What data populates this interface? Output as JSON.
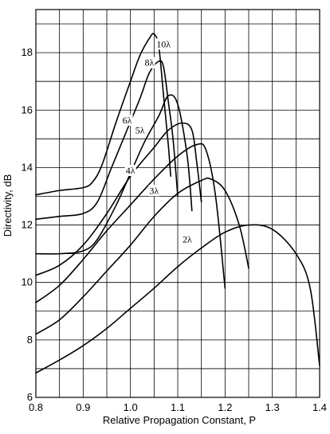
{
  "chart_data": {
    "type": "line",
    "title": "",
    "xlabel": "Relative Propagation Constant, P",
    "ylabel": "Directivity, dB",
    "xlim": [
      0.8,
      1.4
    ],
    "ylim": [
      6,
      19.5
    ],
    "xticks": [
      0.8,
      0.9,
      1.0,
      1.1,
      1.2,
      1.3,
      1.4
    ],
    "xtick_labels": [
      "0.8",
      "0.9",
      "1.0",
      "1.1",
      "1.2",
      "1.3",
      "1.4"
    ],
    "yticks": [
      6,
      8,
      10,
      12,
      14,
      16,
      18
    ],
    "ytick_labels": [
      "6",
      "8",
      "10",
      "12",
      "14",
      "16",
      "18"
    ],
    "grid": true,
    "grid_x_step": 0.05,
    "grid_y_step": 1,
    "line_color": "#000000",
    "series": [
      {
        "name": "2λ",
        "label_x": 1.12,
        "label_y": 11.5,
        "x": [
          0.8,
          0.85,
          0.9,
          0.95,
          1.0,
          1.05,
          1.1,
          1.15,
          1.2,
          1.25,
          1.3,
          1.35,
          1.38,
          1.4
        ],
        "y": [
          6.85,
          7.3,
          7.8,
          8.4,
          9.1,
          9.8,
          10.55,
          11.2,
          11.75,
          12.0,
          11.85,
          11.0,
          9.8,
          7.1
        ]
      },
      {
        "name": "3λ",
        "label_x": 1.05,
        "label_y": 13.2,
        "x": [
          0.8,
          0.85,
          0.9,
          0.95,
          1.0,
          1.05,
          1.1,
          1.15,
          1.17,
          1.2,
          1.23,
          1.25
        ],
        "y": [
          8.2,
          8.7,
          9.5,
          10.4,
          11.3,
          12.3,
          13.1,
          13.55,
          13.6,
          13.2,
          12.0,
          10.5
        ]
      },
      {
        "name": "4λ",
        "label_x": 1.0,
        "label_y": 13.9,
        "x": [
          0.8,
          0.85,
          0.9,
          0.95,
          1.0,
          1.05,
          1.1,
          1.14,
          1.16,
          1.18,
          1.2
        ],
        "y": [
          9.3,
          9.9,
          10.8,
          11.8,
          12.7,
          13.6,
          14.4,
          14.8,
          14.6,
          13.0,
          9.8
        ]
      },
      {
        "name": "5λ",
        "label_x": 1.02,
        "label_y": 15.3,
        "x": [
          0.8,
          0.85,
          0.9,
          0.95,
          1.0,
          1.05,
          1.08,
          1.11,
          1.13,
          1.14,
          1.15
        ],
        "y": [
          10.25,
          10.6,
          11.3,
          12.4,
          13.7,
          14.7,
          15.3,
          15.55,
          15.3,
          14.2,
          12.8
        ]
      },
      {
        "name": "6λ",
        "label_x": 0.993,
        "label_y": 15.65,
        "x": [
          0.8,
          0.85,
          0.9,
          0.93,
          0.97,
          1.0,
          1.03,
          1.06,
          1.08,
          1.1,
          1.12,
          1.13
        ],
        "y": [
          11.0,
          11.0,
          11.1,
          11.5,
          12.7,
          13.8,
          14.9,
          15.8,
          16.5,
          16.2,
          14.4,
          12.5
        ]
      },
      {
        "name": "8λ",
        "label_x": 1.04,
        "label_y": 17.65,
        "x": [
          0.8,
          0.85,
          0.9,
          0.93,
          0.96,
          0.99,
          1.02,
          1.04,
          1.06,
          1.07,
          1.08,
          1.09,
          1.1
        ],
        "y": [
          12.2,
          12.3,
          12.4,
          12.8,
          14.0,
          15.2,
          16.4,
          17.3,
          17.7,
          17.5,
          16.3,
          15.0,
          13.0
        ]
      },
      {
        "name": "10λ",
        "label_x": 1.07,
        "label_y": 18.3,
        "x": [
          0.8,
          0.85,
          0.9,
          0.92,
          0.94,
          0.97,
          1.0,
          1.02,
          1.04,
          1.05,
          1.06,
          1.07,
          1.08,
          1.085
        ],
        "y": [
          13.05,
          13.2,
          13.3,
          13.5,
          14.1,
          15.6,
          17.0,
          17.9,
          18.5,
          18.65,
          18.2,
          16.5,
          14.8,
          13.7
        ]
      }
    ]
  }
}
